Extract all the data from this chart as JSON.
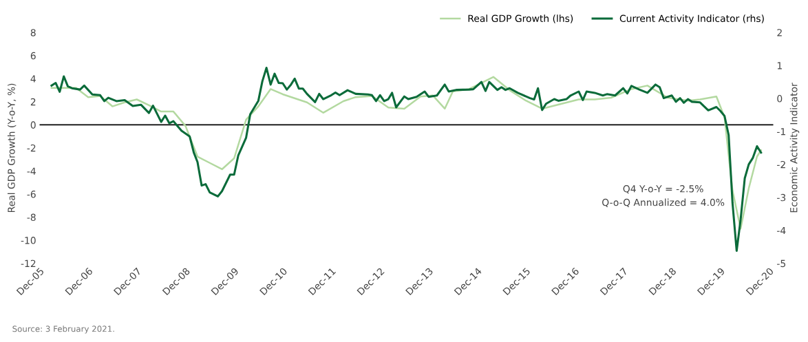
{
  "chart_data": {
    "type": "line",
    "ylabel": "Real GDP Growth (Y-o-Y, %)",
    "y2label": "Economic Activity Indicator",
    "annotations": [
      "Q4 Y-o-Y = -2.5%\nQ-o-Q Annualized = 4.0%",
      "Source: 3 February 2021."
    ],
    "xlim": [
      "2005-12",
      "2021-01"
    ],
    "xticks": [
      {
        "value": "2005-12",
        "label": "Dec-05"
      },
      {
        "value": "2006-12",
        "label": "Dec-06"
      },
      {
        "value": "2007-12",
        "label": "Dec-07"
      },
      {
        "value": "2008-12",
        "label": "Dec-08"
      },
      {
        "value": "2009-12",
        "label": "Dec-09"
      },
      {
        "value": "2010-12",
        "label": "Dec-10"
      },
      {
        "value": "2011-12",
        "label": "Dec-11"
      },
      {
        "value": "2012-12",
        "label": "Dec-12"
      },
      {
        "value": "2013-12",
        "label": "Dec-13"
      },
      {
        "value": "2014-12",
        "label": "Dec-14"
      },
      {
        "value": "2015-12",
        "label": "Dec-15"
      },
      {
        "value": "2016-12",
        "label": "Dec-16"
      },
      {
        "value": "2017-12",
        "label": "Dec-17"
      },
      {
        "value": "2018-12",
        "label": "Dec-18"
      },
      {
        "value": "2019-12",
        "label": "Dec-19"
      },
      {
        "value": "2020-12",
        "label": "Dec-20"
      }
    ],
    "ylim": [
      -12,
      8
    ],
    "yticks": [
      -12,
      -10,
      -8,
      -6,
      -4,
      -2,
      0,
      2,
      4,
      6,
      8
    ],
    "y2lim": [
      -5,
      2
    ],
    "y2ticks": [
      -5,
      -4,
      -3,
      -2,
      -1,
      0,
      1,
      2
    ],
    "ref_lines": [
      {
        "axis": "y",
        "value": 0,
        "color": "#000000"
      }
    ],
    "grid": false,
    "legend": "top right",
    "marker": "none",
    "line_style": "solid",
    "series": [
      {
        "name": "Real GDP Growth (lhs)",
        "color": "#b3d9a0",
        "x": [
          "2006-03",
          "2006-09",
          "2006-12",
          "2007-03",
          "2007-06",
          "2007-09",
          "2007-12",
          "2008-03",
          "2008-06",
          "2008-09",
          "2008-12",
          "2009-03",
          "2009-06",
          "2009-09",
          "2009-12",
          "2010-03",
          "2010-06",
          "2010-09",
          "2010-12",
          "2011-06",
          "2011-10",
          "2012-03",
          "2012-06",
          "2012-10",
          "2013-02",
          "2013-06",
          "2013-10",
          "2014-01",
          "2014-04",
          "2014-06",
          "2014-10",
          "2015-04",
          "2015-08",
          "2015-12",
          "2016-04",
          "2016-08",
          "2017-01",
          "2017-05",
          "2017-09",
          "2018-02",
          "2018-06",
          "2018-11",
          "2019-04",
          "2019-07",
          "2019-11",
          "2020-01",
          "2020-03",
          "2020-05",
          "2020-07",
          "2020-09",
          "2020-10"
        ],
        "values": [
          3.2,
          3.2,
          2.4,
          2.5,
          1.6,
          1.95,
          2.2,
          1.7,
          1.15,
          1.15,
          -0.1,
          -2.75,
          -3.3,
          -3.85,
          -2.9,
          0.45,
          1.6,
          3.1,
          2.65,
          1.95,
          1.05,
          2.05,
          2.4,
          2.5,
          1.5,
          1.4,
          2.45,
          2.55,
          1.4,
          2.9,
          3.1,
          4.15,
          3.0,
          2.1,
          1.4,
          1.75,
          2.2,
          2.2,
          2.35,
          3.1,
          3.4,
          2.35,
          2.1,
          2.2,
          2.45,
          0.65,
          -5.7,
          -9.0,
          -5.5,
          -2.75,
          -2.2
        ]
      },
      {
        "name": "Current Activity Indicator (rhs)",
        "color": "#0b6b3a",
        "axis": "y2",
        "x": [
          "2006-03",
          "2006-04",
          "2006-05",
          "2006-06",
          "2006-07",
          "2006-08",
          "2006-10",
          "2006-11",
          "2007-01",
          "2007-03",
          "2007-04",
          "2007-05",
          "2007-07",
          "2007-09",
          "2007-11",
          "2008-01",
          "2008-03",
          "2008-04",
          "2008-06",
          "2008-07",
          "2008-08",
          "2008-09",
          "2008-11",
          "2009-01",
          "2009-02",
          "2009-03",
          "2009-04",
          "2009-05",
          "2009-06",
          "2009-08",
          "2009-09",
          "2009-11",
          "2009-12",
          "2010-01",
          "2010-03",
          "2010-04",
          "2010-06",
          "2010-07",
          "2010-08",
          "2010-09",
          "2010-10",
          "2010-11",
          "2010-12",
          "2011-01",
          "2011-02",
          "2011-03",
          "2011-04",
          "2011-05",
          "2011-06",
          "2011-08",
          "2011-09",
          "2011-10",
          "2011-12",
          "2012-01",
          "2012-02",
          "2012-04",
          "2012-06",
          "2012-09",
          "2012-10",
          "2012-11",
          "2012-12",
          "2013-01",
          "2013-02",
          "2013-03",
          "2013-04",
          "2013-06",
          "2013-07",
          "2013-09",
          "2013-11",
          "2013-12",
          "2014-02",
          "2014-04",
          "2014-05",
          "2014-07",
          "2014-10",
          "2014-11",
          "2015-01",
          "2015-02",
          "2015-03",
          "2015-05",
          "2015-06",
          "2015-07",
          "2015-08",
          "2015-10",
          "2016-01",
          "2016-02",
          "2016-03",
          "2016-04",
          "2016-05",
          "2016-07",
          "2016-08",
          "2016-10",
          "2016-11",
          "2017-01",
          "2017-02",
          "2017-03",
          "2017-05",
          "2017-07",
          "2017-08",
          "2017-10",
          "2017-12",
          "2018-01",
          "2018-02",
          "2018-04",
          "2018-06",
          "2018-08",
          "2018-09",
          "2018-10",
          "2018-12",
          "2019-01",
          "2019-02",
          "2019-03",
          "2019-04",
          "2019-05",
          "2019-07",
          "2019-09",
          "2019-11",
          "2019-12",
          "2020-01",
          "2020-02",
          "2020-03",
          "2020-04",
          "2020-05",
          "2020-06",
          "2020-07",
          "2020-08",
          "2020-09",
          "2020-10"
        ],
        "values": [
          0.39,
          0.47,
          0.2,
          0.67,
          0.37,
          0.31,
          0.27,
          0.39,
          0.12,
          0.1,
          -0.08,
          0.02,
          -0.08,
          -0.05,
          -0.23,
          -0.19,
          -0.44,
          -0.22,
          -0.71,
          -0.52,
          -0.75,
          -0.69,
          -0.98,
          -1.15,
          -1.64,
          -1.93,
          -2.64,
          -2.6,
          -2.85,
          -2.97,
          -2.81,
          -2.31,
          -2.31,
          -1.73,
          -1.19,
          -0.48,
          -0.07,
          0.52,
          0.93,
          0.42,
          0.75,
          0.47,
          0.46,
          0.27,
          0.42,
          0.6,
          0.3,
          0.3,
          0.14,
          -0.11,
          0.14,
          -0.02,
          0.1,
          0.18,
          0.1,
          0.25,
          0.14,
          0.12,
          0.1,
          -0.08,
          0.1,
          -0.08,
          -0.02,
          0.17,
          -0.27,
          0.06,
          -0.02,
          0.05,
          0.21,
          0.05,
          0.09,
          0.42,
          0.21,
          0.26,
          0.27,
          0.28,
          0.5,
          0.23,
          0.5,
          0.26,
          0.34,
          0.26,
          0.31,
          0.17,
          0.01,
          -0.03,
          0.31,
          -0.35,
          -0.16,
          -0.02,
          -0.07,
          -0.02,
          0.09,
          0.21,
          -0.05,
          0.21,
          0.17,
          0.09,
          0.13,
          0.09,
          0.31,
          0.15,
          0.38,
          0.27,
          0.17,
          0.42,
          0.34,
          0.01,
          0.09,
          -0.1,
          0.01,
          -0.13,
          -0.02,
          -0.1,
          -0.12,
          -0.36,
          -0.26,
          -0.38,
          -0.53,
          -1.11,
          -3.17,
          -4.62,
          -3.67,
          -2.42,
          -2.0,
          -1.8,
          -1.45,
          -1.64
        ]
      }
    ]
  }
}
